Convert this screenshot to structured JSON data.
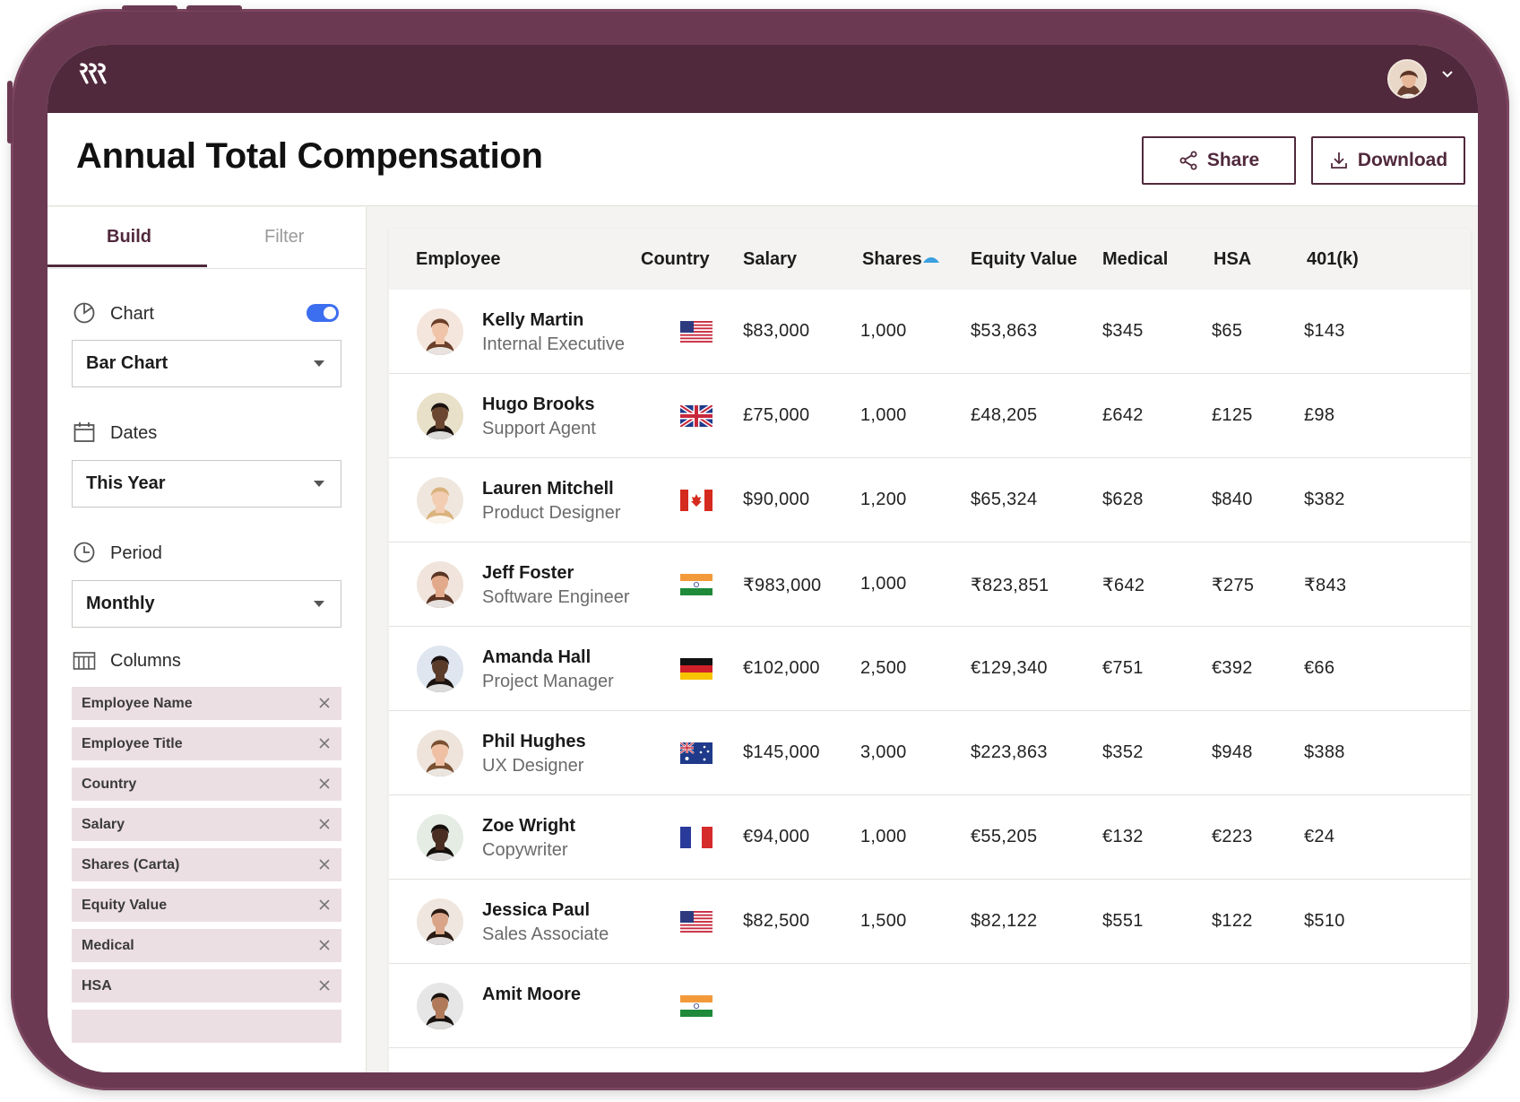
{
  "header": {
    "page_title": "Annual Total Compensation",
    "share_label": "Share",
    "download_label": "Download"
  },
  "sidebar": {
    "tabs": [
      {
        "label": "Build",
        "active": true
      },
      {
        "label": "Filter",
        "active": false
      }
    ],
    "chart": {
      "label": "Chart",
      "toggle_on": true,
      "selected": "Bar Chart"
    },
    "dates": {
      "label": "Dates",
      "selected": "This Year"
    },
    "period": {
      "label": "Period",
      "selected": "Monthly"
    },
    "columns": {
      "label": "Columns",
      "items": [
        "Employee Name",
        "Employee Title",
        "Country",
        "Salary",
        "Shares (Carta)",
        "Equity Value",
        "Medical",
        "HSA"
      ]
    }
  },
  "table": {
    "columns": [
      "Employee",
      "Country",
      "Salary",
      "Shares",
      "Equity Value",
      "Medical",
      "HSA",
      "401(k)"
    ],
    "sorted_column": "Shares",
    "rows": [
      {
        "name": "Kelly Martin",
        "title": "Internal Executive",
        "flag": "us",
        "salary": "$83,000",
        "shares": "1,000",
        "equity": "$53,863",
        "medical": "$345",
        "hsa": "$65",
        "k401": "$143"
      },
      {
        "name": "Hugo Brooks",
        "title": "Support Agent",
        "flag": "uk",
        "salary": "£75,000",
        "shares": "1,000",
        "equity": "£48,205",
        "medical": "£642",
        "hsa": "£125",
        "k401": "£98"
      },
      {
        "name": "Lauren Mitchell",
        "title": "Product Designer",
        "flag": "ca",
        "salary": "$90,000",
        "shares": "1,200",
        "equity": "$65,324",
        "medical": "$628",
        "hsa": "$840",
        "k401": "$382"
      },
      {
        "name": "Jeff Foster",
        "title": "Software Engineer",
        "flag": "in",
        "salary": "₹983,000",
        "shares": "1,000",
        "equity": "₹823,851",
        "medical": "₹642",
        "hsa": "₹275",
        "k401": "₹843"
      },
      {
        "name": "Amanda Hall",
        "title": "Project Manager",
        "flag": "de",
        "salary": "€102,000",
        "shares": "2,500",
        "equity": "€129,340",
        "medical": "€751",
        "hsa": "€392",
        "k401": "€66"
      },
      {
        "name": "Phil Hughes",
        "title": "UX Designer",
        "flag": "au",
        "salary": "$145,000",
        "shares": "3,000",
        "equity": "$223,863",
        "medical": "$352",
        "hsa": "$948",
        "k401": "$388"
      },
      {
        "name": "Zoe Wright",
        "title": "Copywriter",
        "flag": "fr",
        "salary": "€94,000",
        "shares": "1,000",
        "equity": "€55,205",
        "medical": "€132",
        "hsa": "€223",
        "k401": "€24"
      },
      {
        "name": "Jessica Paul",
        "title": "Sales Associate",
        "flag": "us",
        "salary": "$82,500",
        "shares": "1,500",
        "equity": "$82,122",
        "medical": "$551",
        "hsa": "$122",
        "k401": "$510"
      },
      {
        "name": "Amit Moore",
        "title": "",
        "flag": "in",
        "salary": "",
        "shares": "",
        "equity": "",
        "medical": "",
        "hsa": "",
        "k401": ""
      }
    ]
  },
  "colors": {
    "brand": "#51293c",
    "toggle": "#3c6ef0",
    "chip_bg": "#ecdfe4"
  }
}
